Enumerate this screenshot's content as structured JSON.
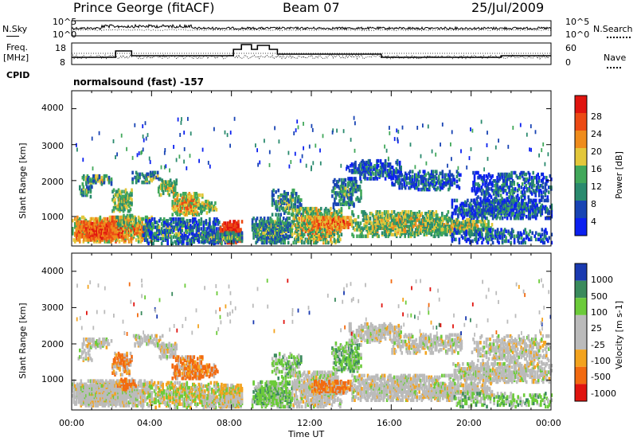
{
  "header": {
    "station": "Prince George (fitACF)",
    "beam": "Beam 07",
    "date": "25/Jul/2009"
  },
  "small_panels": {
    "nsky_label": "N.Sky",
    "nsky_ticks": [
      "10^5",
      "10^0"
    ],
    "nsearch_label": "N.Search",
    "nsearch_ticks": [
      "10^5",
      "10^0"
    ],
    "freq_label_1": "Freq.",
    "freq_label_2": "[MHz]",
    "freq_ticks": [
      "18",
      "8"
    ],
    "nave_label": "Nave",
    "nave_ticks": [
      "60",
      "0"
    ],
    "cpid_label": "CPID",
    "cpid_text": "normalsound (fast) -157"
  },
  "colors": {
    "power_scale": [
      "#0b20f0",
      "#1844b4",
      "#2a8a6e",
      "#41a85a",
      "#e3c73a",
      "#ef8c1c",
      "#ec4a14",
      "#e0140f"
    ],
    "velocity_scale": [
      "#e0140f",
      "#f26a10",
      "#f3a31e",
      "#bbbbbb",
      "#bbbbbb",
      "#6ccb3a",
      "#3a8a5c",
      "#1a3ab0"
    ],
    "ground_scatter": "#bbbbbb"
  },
  "chart_data": [
    {
      "type": "heatmap",
      "name": "Power",
      "ylabel": "Slant Range [km]",
      "colorbar_label": "Power [dB]",
      "colorbar_ticks": [
        "28",
        "24",
        "20",
        "16",
        "12",
        "8",
        "4"
      ],
      "ylim": [
        180,
        4500
      ],
      "yticks": [
        "4000",
        "3000",
        "2000",
        "1000"
      ],
      "xlim_hours": [
        0,
        24
      ],
      "xticks": [
        "00:00",
        "04:00",
        "08:00",
        "12:00",
        "16:00",
        "20:00",
        "00:00"
      ],
      "xlabel": "Time UT"
    },
    {
      "type": "heatmap",
      "name": "Velocity",
      "ylabel": "Slant Range [km]",
      "colorbar_label": "Velocity [m s-1]",
      "colorbar_ticks": [
        "1000",
        "500",
        "100",
        "25",
        "-25",
        "-100",
        "-500",
        "-1000"
      ],
      "ylim": [
        180,
        4500
      ],
      "yticks": [
        "4000",
        "3000",
        "2000",
        "1000"
      ],
      "xlim_hours": [
        0,
        24
      ],
      "xticks": [
        "00:00",
        "04:00",
        "08:00",
        "12:00",
        "16:00",
        "20:00",
        "00:00"
      ],
      "xlabel": "Time UT"
    }
  ]
}
